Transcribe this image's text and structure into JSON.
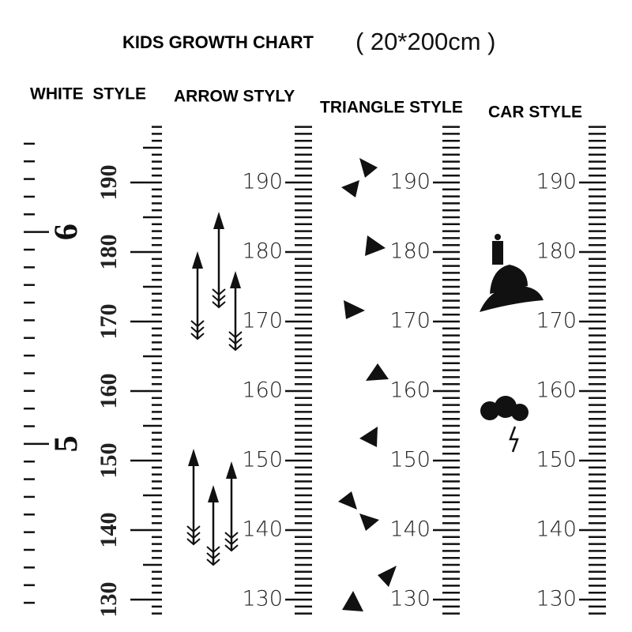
{
  "header": {
    "title": "KIDS GROWTH CHART",
    "size": "( 20*200cm )"
  },
  "styles": [
    {
      "label": "WHITE  STYLE",
      "cm_labels": [
        130,
        140,
        150,
        160,
        170,
        180,
        190
      ],
      "ft_labels": [
        5,
        6
      ]
    },
    {
      "label": "ARROW STYLY",
      "cm_labels": [
        130,
        140,
        150,
        160,
        170,
        180,
        190
      ]
    },
    {
      "label": "TRIANGLE STYLE",
      "cm_labels": [
        130,
        140,
        150,
        160,
        170,
        180,
        190
      ]
    },
    {
      "label": "CAR STYLE",
      "cm_labels": [
        130,
        140,
        150,
        160,
        170,
        180,
        190
      ]
    }
  ]
}
